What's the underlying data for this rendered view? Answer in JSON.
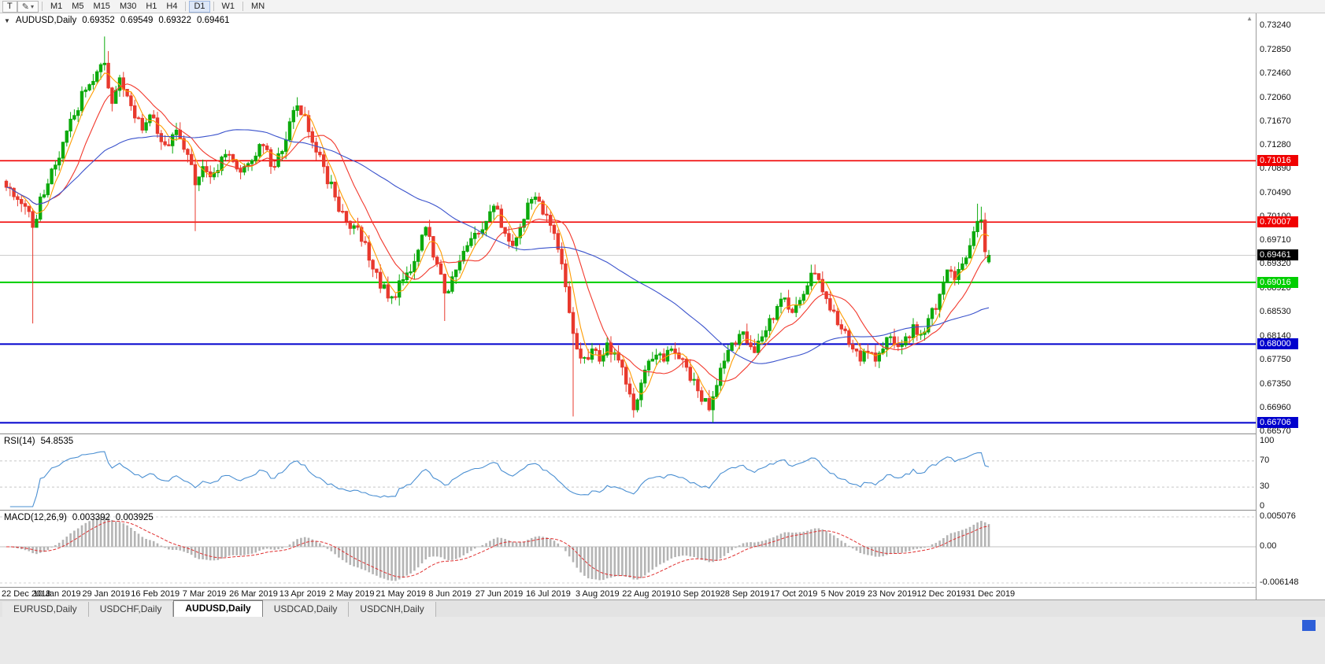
{
  "icons": {
    "collapse": "▼",
    "pencil": "✎",
    "caret": "▾",
    "scroll_up": "▲"
  },
  "toolbar": {
    "chart_type_button": "T",
    "timeframes": [
      "M1",
      "M5",
      "M15",
      "M30",
      "H1",
      "H4",
      "D1",
      "W1",
      "MN"
    ],
    "active_timeframe": "D1"
  },
  "chart_header": {
    "symbol": "AUDUSD,Daily",
    "open": "0.69352",
    "high": "0.69549",
    "low": "0.69322",
    "close": "0.69461"
  },
  "indicators": {
    "rsi": {
      "label": "RSI(14)",
      "value": "54.8535"
    },
    "macd": {
      "label": "MACD(12,26,9)",
      "value_main": "0.003392",
      "value_signal": "0.003925"
    }
  },
  "price_scale": {
    "ticks": [
      "0.73240",
      "0.72850",
      "0.72460",
      "0.72060",
      "0.71670",
      "0.71280",
      "0.70890",
      "0.70490",
      "0.70100",
      "0.69710",
      "0.69320",
      "0.68920",
      "0.68530",
      "0.68140",
      "0.67750",
      "0.67350",
      "0.66960",
      "0.66570"
    ]
  },
  "rsi_scale": {
    "ticks": [
      "100",
      "70",
      "30",
      "0"
    ],
    "values": [
      100,
      70,
      30,
      0
    ],
    "levels": [
      70,
      30
    ]
  },
  "macd_scale": {
    "ticks": [
      "0.005076",
      "0.00",
      "-0.006148"
    ],
    "values": [
      0.005076,
      0,
      -0.006148
    ],
    "max": 0.005076,
    "min": -0.006148
  },
  "levels": [
    {
      "value": 0.71016,
      "label": "0.71016",
      "color": "#f00000",
      "width": 1.6
    },
    {
      "value": 0.70007,
      "label": "0.70007",
      "color": "#f00000",
      "width": 1.6
    },
    {
      "value": 0.69016,
      "label": "0.69016",
      "color": "#00ce00",
      "width": 2
    },
    {
      "value": 0.68,
      "label": "0.68000",
      "color": "#0000cd",
      "width": 2
    },
    {
      "value": 0.66706,
      "label": "0.66706",
      "color": "#0000cd",
      "width": 2
    }
  ],
  "current_price": {
    "value": 0.69461,
    "label": "0.69461",
    "box_color": "#000000",
    "line_color": "#cccccc"
  },
  "tabs": {
    "items": [
      "EURUSD,Daily",
      "USDCHF,Daily",
      "AUDUSD,Daily",
      "USDCAD,Daily",
      "USDCNH,Daily"
    ],
    "active": "AUDUSD,Daily"
  },
  "chart_data": {
    "type": "candlestick",
    "symbol": "AUDUSD",
    "timeframe": "Daily",
    "current_bar": {
      "open": 0.69352,
      "high": 0.69549,
      "low": 0.69322,
      "close": 0.69461
    },
    "ylim": [
      0.6653,
      0.7344
    ],
    "x_labels": [
      "22 Dec 2018",
      "10 Jan 2019",
      "29 Jan 2019",
      "16 Feb 2019",
      "7 Mar 2019",
      "26 Mar 2019",
      "13 Apr 2019",
      "2 May 2019",
      "21 May 2019",
      "8 Jun 2019",
      "27 Jun 2019",
      "16 Jul 2019",
      "3 Aug 2019",
      "22 Aug 2019",
      "10 Sep 2019",
      "28 Sep 2019",
      "17 Oct 2019",
      "5 Nov 2019",
      "23 Nov 2019",
      "12 Dec 2019",
      "31 Dec 2019"
    ],
    "candles_per_label": 13,
    "candle_count": 261,
    "price_path_anchors": [
      [
        0,
        0.7058
      ],
      [
        3,
        0.7038
      ],
      [
        6,
        0.7018
      ],
      [
        7,
        0.6992
      ],
      [
        9,
        0.7042
      ],
      [
        12,
        0.7088
      ],
      [
        15,
        0.7132
      ],
      [
        18,
        0.7176
      ],
      [
        21,
        0.7218
      ],
      [
        24,
        0.7248
      ],
      [
        26,
        0.7262
      ],
      [
        28,
        0.7196
      ],
      [
        30,
        0.7238
      ],
      [
        33,
        0.7192
      ],
      [
        36,
        0.7152
      ],
      [
        39,
        0.7172
      ],
      [
        42,
        0.7128
      ],
      [
        45,
        0.7152
      ],
      [
        48,
        0.7112
      ],
      [
        50,
        0.7062
      ],
      [
        52,
        0.7092
      ],
      [
        55,
        0.7082
      ],
      [
        58,
        0.7112
      ],
      [
        61,
        0.7088
      ],
      [
        65,
        0.7102
      ],
      [
        68,
        0.7126
      ],
      [
        71,
        0.7092
      ],
      [
        74,
        0.7136
      ],
      [
        77,
        0.7192
      ],
      [
        79,
        0.7176
      ],
      [
        81,
        0.7132
      ],
      [
        84,
        0.7092
      ],
      [
        87,
        0.7042
      ],
      [
        90,
        0.7002
      ],
      [
        93,
        0.6992
      ],
      [
        96,
        0.6938
      ],
      [
        99,
        0.6892
      ],
      [
        102,
        0.6878
      ],
      [
        105,
        0.6906
      ],
      [
        108,
        0.6936
      ],
      [
        111,
        0.6992
      ],
      [
        114,
        0.6932
      ],
      [
        116,
        0.6884
      ],
      [
        119,
        0.6922
      ],
      [
        122,
        0.6962
      ],
      [
        125,
        0.6982
      ],
      [
        127,
        0.7002
      ],
      [
        130,
        0.7022
      ],
      [
        132,
        0.6982
      ],
      [
        134,
        0.6962
      ],
      [
        136,
        0.6992
      ],
      [
        138,
        0.7032
      ],
      [
        140,
        0.7042
      ],
      [
        143,
        0.7012
      ],
      [
        145,
        0.6982
      ],
      [
        147,
        0.6932
      ],
      [
        149,
        0.6852
      ],
      [
        151,
        0.6792
      ],
      [
        153,
        0.6778
      ],
      [
        155,
        0.6792
      ],
      [
        157,
        0.6772
      ],
      [
        159,
        0.6802
      ],
      [
        161,
        0.6786
      ],
      [
        163,
        0.6762
      ],
      [
        165,
        0.6718
      ],
      [
        166,
        0.6692
      ],
      [
        168,
        0.6736
      ],
      [
        170,
        0.6772
      ],
      [
        172,
        0.6782
      ],
      [
        174,
        0.6772
      ],
      [
        176,
        0.6792
      ],
      [
        178,
        0.6776
      ],
      [
        180,
        0.6762
      ],
      [
        182,
        0.6742
      ],
      [
        184,
        0.6706
      ],
      [
        186,
        0.6692
      ],
      [
        188,
        0.6732
      ],
      [
        190,
        0.6772
      ],
      [
        192,
        0.6802
      ],
      [
        194,
        0.6816
      ],
      [
        196,
        0.6802
      ],
      [
        198,
        0.6786
      ],
      [
        200,
        0.6812
      ],
      [
        202,
        0.6842
      ],
      [
        204,
        0.6862
      ],
      [
        206,
        0.6876
      ],
      [
        208,
        0.6852
      ],
      [
        210,
        0.6872
      ],
      [
        212,
        0.6896
      ],
      [
        214,
        0.6916
      ],
      [
        216,
        0.6886
      ],
      [
        218,
        0.6856
      ],
      [
        220,
        0.6832
      ],
      [
        222,
        0.6822
      ],
      [
        224,
        0.6792
      ],
      [
        226,
        0.6772
      ],
      [
        228,
        0.6786
      ],
      [
        230,
        0.6772
      ],
      [
        232,
        0.6792
      ],
      [
        234,
        0.6812
      ],
      [
        236,
        0.6796
      ],
      [
        238,
        0.6812
      ],
      [
        240,
        0.6832
      ],
      [
        242,
        0.6816
      ],
      [
        244,
        0.6842
      ],
      [
        247,
        0.6882
      ],
      [
        249,
        0.6922
      ],
      [
        251,
        0.6906
      ],
      [
        253,
        0.6932
      ],
      [
        255,
        0.6962
      ],
      [
        257,
        0.7002
      ],
      [
        258,
        0.7004
      ],
      [
        259,
        0.6952
      ],
      [
        260,
        0.6946
      ]
    ],
    "wick_spikes": [
      {
        "i": 7,
        "low": 0.6834
      },
      {
        "i": 26,
        "high": 0.7306
      },
      {
        "i": 27,
        "high": 0.7282
      },
      {
        "i": 50,
        "low": 0.6986
      },
      {
        "i": 77,
        "high": 0.7206
      },
      {
        "i": 102,
        "low": 0.6866
      },
      {
        "i": 116,
        "low": 0.6838
      },
      {
        "i": 150,
        "low": 0.6681
      },
      {
        "i": 166,
        "low": 0.6689
      },
      {
        "i": 187,
        "low": 0.6671
      },
      {
        "i": 214,
        "high": 0.6931
      },
      {
        "i": 257,
        "high": 0.7031
      },
      {
        "i": 258,
        "high": 0.7026
      }
    ],
    "overlays": [
      {
        "name": "ma-fast",
        "color": "#ff9c00",
        "period": 5
      },
      {
        "name": "ma-mid",
        "color": "#f23a2e",
        "period": 13
      },
      {
        "name": "ma-slow",
        "color": "#3a52cc",
        "period": 50
      }
    ],
    "colors": {
      "bull": "#0caa0c",
      "bear": "#e8392d",
      "rsi_line": "#4a8fd2",
      "macd_hist": "#b4b4b4",
      "macd_signal": "#e03030",
      "background": "#ffffff"
    },
    "horizontal_lines": [
      0.71016,
      0.70007,
      0.69016,
      0.68,
      0.66706
    ],
    "rsi": {
      "period": 14,
      "last": 54.8535,
      "levels": [
        70,
        30
      ],
      "range": [
        0,
        100
      ]
    },
    "macd": {
      "fast": 12,
      "slow": 26,
      "signal": 9,
      "last_main": 0.003392,
      "last_signal": 0.003925,
      "scale": [
        -0.006148,
        0.005076
      ]
    }
  }
}
